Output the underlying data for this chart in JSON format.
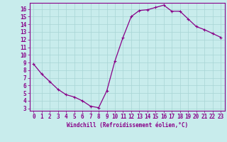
{
  "x": [
    0,
    1,
    2,
    3,
    4,
    5,
    6,
    7,
    8,
    9,
    10,
    11,
    12,
    13,
    14,
    15,
    16,
    17,
    18,
    19,
    20,
    21,
    22,
    23
  ],
  "y": [
    8.8,
    7.5,
    6.5,
    5.5,
    4.8,
    4.5,
    4.0,
    3.3,
    3.1,
    5.3,
    9.2,
    12.3,
    15.0,
    15.8,
    15.9,
    16.2,
    16.5,
    15.7,
    15.7,
    14.7,
    13.7,
    13.3,
    12.8,
    12.3
  ],
  "line_color": "#880088",
  "marker": "+",
  "marker_size": 3.5,
  "linewidth": 0.9,
  "bg_color": "#c8ecec",
  "grid_color": "#a8d4d4",
  "xlabel": "Windchill (Refroidissement éolien,°C)",
  "xlabel_fontsize": 5.5,
  "ylim": [
    2.7,
    16.8
  ],
  "xlim": [
    -0.5,
    23.5
  ],
  "tick_fontsize": 5.5,
  "spine_color": "#880088",
  "yticks": [
    3,
    4,
    5,
    6,
    7,
    8,
    9,
    10,
    11,
    12,
    13,
    14,
    15,
    16
  ]
}
